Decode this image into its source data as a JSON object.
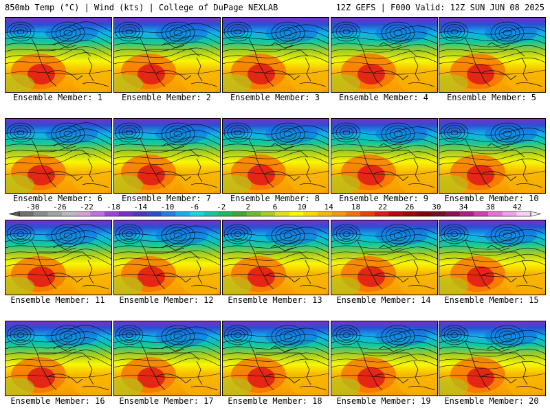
{
  "header": {
    "left": "850mb Temp (°C) | Wind (kts) | College of DuPage NEXLAB",
    "right": "12Z GEFS | F000 Valid: 12Z SUN JUN 08 2025"
  },
  "panels": [
    {
      "label": "Ensemble Member: 1"
    },
    {
      "label": "Ensemble Member: 2"
    },
    {
      "label": "Ensemble Member: 3"
    },
    {
      "label": "Ensemble Member: 4"
    },
    {
      "label": "Ensemble Member: 5"
    },
    {
      "label": "Ensemble Member: 6"
    },
    {
      "label": "Ensemble Member: 7"
    },
    {
      "label": "Ensemble Member: 8"
    },
    {
      "label": "Ensemble Member: 9"
    },
    {
      "label": "Ensemble Member: 10"
    },
    {
      "label": "Ensemble Member: 11"
    },
    {
      "label": "Ensemble Member: 12"
    },
    {
      "label": "Ensemble Member: 13"
    },
    {
      "label": "Ensemble Member: 14"
    },
    {
      "label": "Ensemble Member: 15"
    },
    {
      "label": "Ensemble Member: 16"
    },
    {
      "label": "Ensemble Member: 17"
    },
    {
      "label": "Ensemble Member: 18"
    },
    {
      "label": "Ensemble Member: 19"
    },
    {
      "label": "Ensemble Member: 20"
    }
  ],
  "colorbar": {
    "ticks": [
      "-30",
      "-26",
      "-22",
      "-18",
      "-14",
      "-10",
      "-6",
      "-2",
      "2",
      "6",
      "10",
      "14",
      "18",
      "22",
      "26",
      "30",
      "34",
      "38",
      "42"
    ],
    "colors": [
      "#6f6f6f",
      "#8a8a8a",
      "#a2a2a2",
      "#bababa",
      "#d2a0d2",
      "#c070e0",
      "#a040e0",
      "#7a30c8",
      "#4a3ab8",
      "#2a50d0",
      "#2080e8",
      "#10b0f0",
      "#10d8e0",
      "#10c8a0",
      "#20b860",
      "#40a830",
      "#70b830",
      "#a8cc20",
      "#e0e010",
      "#f8f800",
      "#f8d800",
      "#f8b800",
      "#f89800",
      "#f87000",
      "#f04000",
      "#e01818",
      "#c00010",
      "#a00010",
      "#800010",
      "#701020",
      "#901050",
      "#b02080",
      "#d040b0",
      "#e870d8",
      "#f0a0e8",
      "#f8d0f0"
    ]
  }
}
